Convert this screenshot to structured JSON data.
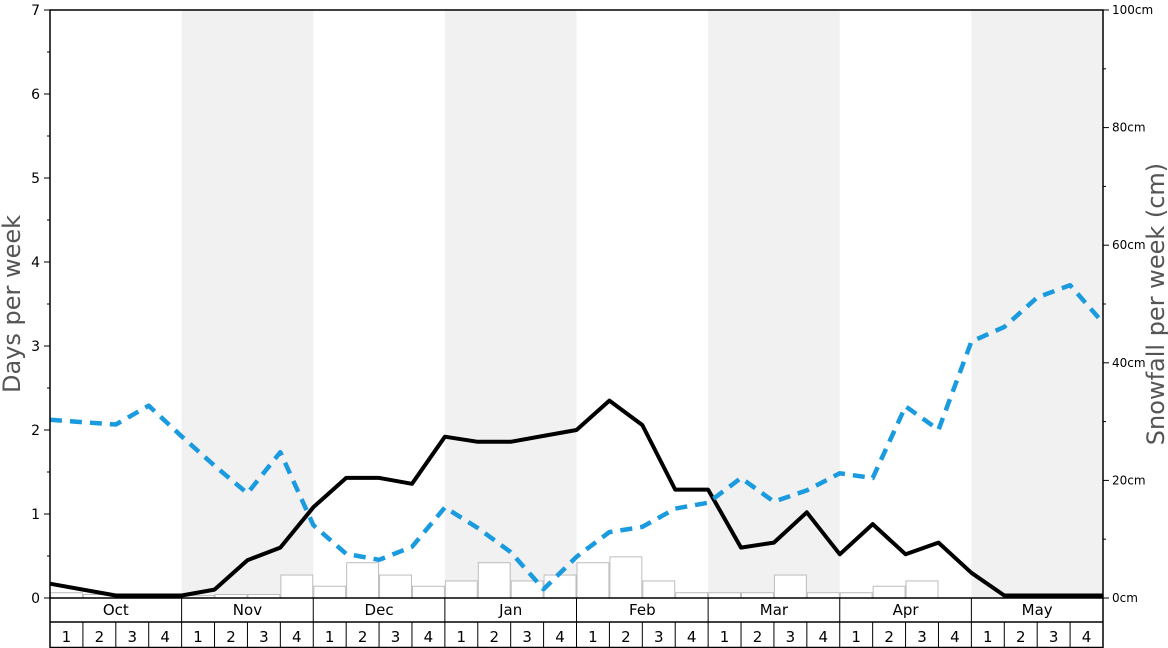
{
  "chart_data": {
    "type": "line",
    "title": "",
    "ylabel_left": "Days per week",
    "ylabel_right": "Snowfall per week (cm)",
    "ylim_left": [
      0,
      7
    ],
    "ylim_right": [
      0,
      100
    ],
    "left_ticks": [
      "0",
      "1",
      "2",
      "3",
      "4",
      "5",
      "6",
      "7"
    ],
    "right_ticks": [
      "0cm",
      "20cm",
      "40cm",
      "60cm",
      "80cm",
      "100cm"
    ],
    "months": [
      "Oct",
      "Nov",
      "Dec",
      "Jan",
      "Feb",
      "Mar",
      "Apr",
      "May"
    ],
    "week_labels": [
      "1",
      "2",
      "3",
      "4"
    ],
    "x_points": 33,
    "series": [
      {
        "axis": "left",
        "style": "solid",
        "color": "#000000",
        "values": [
          0.17,
          0.1,
          0.03,
          0.03,
          0.03,
          0.1,
          0.45,
          0.6,
          1.08,
          1.43,
          1.43,
          1.36,
          1.92,
          1.86,
          1.86,
          1.93,
          2.0,
          2.35,
          2.06,
          1.29,
          1.29,
          0.6,
          0.66,
          1.02,
          0.52,
          0.88,
          0.52,
          0.66,
          0.3,
          0.03,
          0.03,
          0.03,
          0.03
        ]
      },
      {
        "axis": "right",
        "style": "dashed",
        "color": "#1a9be0",
        "values": [
          30.3,
          29.9,
          29.5,
          32.7,
          27.5,
          22.5,
          17.8,
          24.8,
          12.4,
          7.5,
          6.5,
          8.7,
          15.4,
          11.9,
          7.8,
          1.5,
          7.0,
          11.2,
          12.1,
          15.2,
          16.2,
          20.4,
          16.4,
          18.3,
          21.2,
          20.4,
          32.6,
          28.6,
          43.6,
          46.1,
          51.1,
          53.2,
          46.8
        ]
      }
    ],
    "bars": {
      "axis": "right",
      "values": [
        0.9,
        0.6,
        0.0,
        0.0,
        0.4,
        0.6,
        0.6,
        3.9,
        2.0,
        6.0,
        3.9,
        2.0,
        2.9,
        6.0,
        2.9,
        3.9,
        6.0,
        7.0,
        2.9,
        0.9,
        0.9,
        0.9,
        3.9,
        0.9,
        0.9,
        2.0,
        2.9,
        0.0,
        0.0,
        0.0,
        0.0,
        0.0
      ]
    }
  }
}
